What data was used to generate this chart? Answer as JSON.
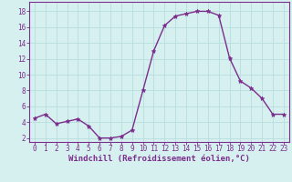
{
  "x": [
    0,
    1,
    2,
    3,
    4,
    5,
    6,
    7,
    8,
    9,
    10,
    11,
    12,
    13,
    14,
    15,
    16,
    17,
    18,
    19,
    20,
    21,
    22,
    23
  ],
  "y": [
    4.5,
    5.0,
    3.8,
    4.1,
    4.4,
    3.5,
    2.0,
    2.0,
    2.2,
    3.0,
    8.0,
    13.0,
    16.2,
    17.4,
    17.7,
    18.0,
    18.0,
    17.5,
    12.1,
    9.2,
    8.3,
    7.0,
    5.0,
    5.0
  ],
  "line_color": "#7b2d8b",
  "marker": "*",
  "marker_size": 3.5,
  "bg_color": "#d6f0f0",
  "grid_color": "#b8dede",
  "xlabel": "Windchill (Refroidissement éolien,°C)",
  "xlabel_fontsize": 6.5,
  "yticks": [
    2,
    4,
    6,
    8,
    10,
    12,
    14,
    16,
    18
  ],
  "xticks": [
    0,
    1,
    2,
    3,
    4,
    5,
    6,
    7,
    8,
    9,
    10,
    11,
    12,
    13,
    14,
    15,
    16,
    17,
    18,
    19,
    20,
    21,
    22,
    23
  ],
  "ylim": [
    1.5,
    19.2
  ],
  "xlim": [
    -0.5,
    23.5
  ],
  "tick_color": "#7b2d8b",
  "tick_fontsize": 5.5,
  "spine_color": "#7b2d8b",
  "linewidth": 1.0
}
